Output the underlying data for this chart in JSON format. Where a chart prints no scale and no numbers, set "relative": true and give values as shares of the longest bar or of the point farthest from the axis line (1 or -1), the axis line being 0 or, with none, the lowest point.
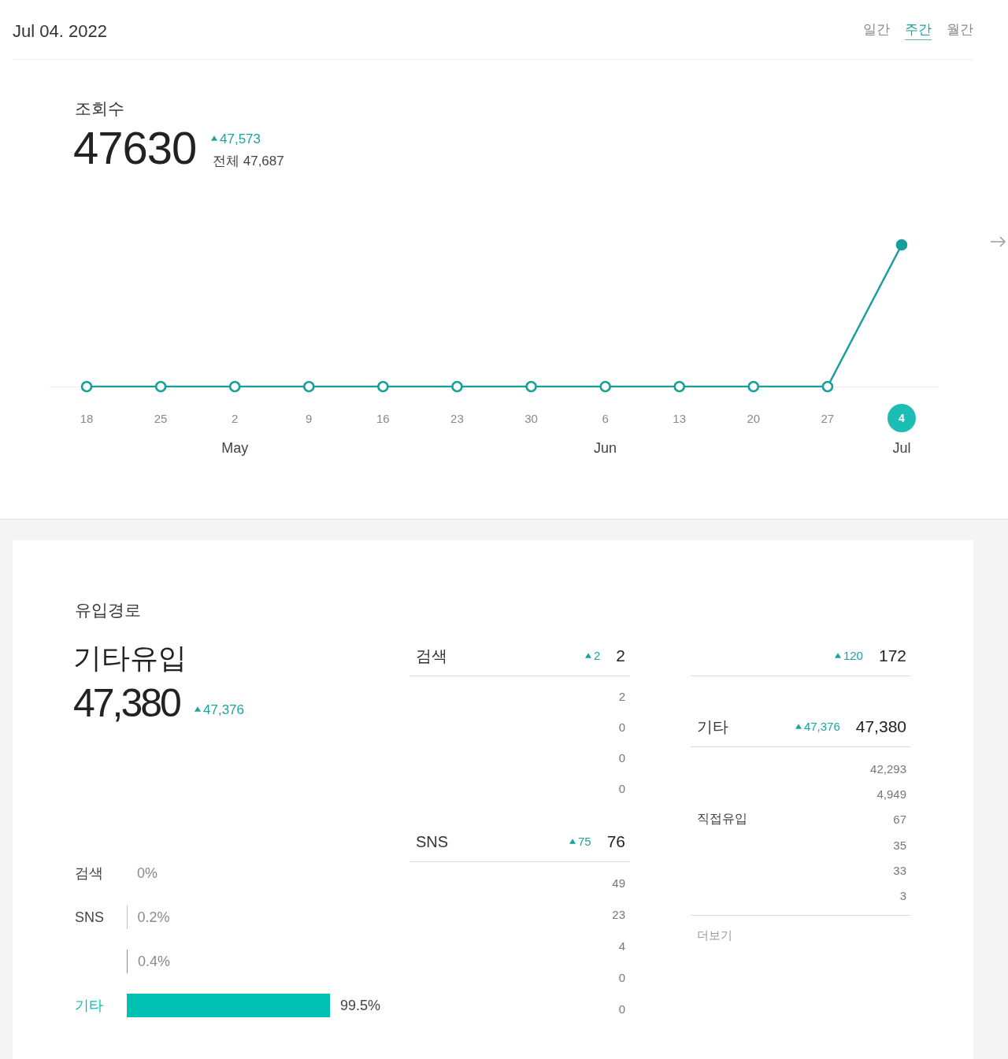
{
  "chart_data": [
    {
      "type": "line",
      "title": "조회수",
      "annotations": [
        "Jul 04. 2022",
        "일간",
        "주간",
        "월간",
        "47630",
        "47,573",
        "전체 47,687",
        "May",
        "Jun",
        "Jul"
      ],
      "categories": [
        "18",
        "25",
        "2",
        "9",
        "16",
        "23",
        "30",
        "6",
        "13",
        "20",
        "27",
        "4"
      ],
      "values": [
        0,
        0,
        0,
        0,
        0,
        0,
        0,
        0,
        0,
        0,
        0,
        1
      ],
      "relative": true,
      "color": "#179f9a",
      "marker": "circle"
    },
    {
      "type": "bar",
      "orientation": "horizontal",
      "title": "유입경로",
      "subtitle": "기타유입",
      "annotations": [
        "47,380",
        "47,376"
      ],
      "categories": [
        "검색",
        "SNS",
        null,
        "기타"
      ],
      "values": [
        0,
        0.2,
        0.4,
        99.5
      ],
      "value_labels": [
        "0%",
        "0.2%",
        "0.4%",
        "99.5%"
      ],
      "colors": [
        "#8c8c8c",
        "#8c8c8c",
        "#8c8c8c",
        "#00bfb3"
      ]
    },
    {
      "type": "other",
      "title": "검색",
      "annotations": [
        "2",
        "2"
      ],
      "categories": [
        null,
        null,
        null,
        null
      ],
      "values": [
        2,
        0,
        0,
        0
      ],
      "data_labels": true
    },
    {
      "type": "other",
      "title": "SNS",
      "annotations": [
        "75",
        "76"
      ],
      "categories": [
        null,
        null,
        null,
        null,
        null
      ],
      "values": [
        49,
        23,
        4,
        0,
        0
      ],
      "data_labels": true
    },
    {
      "type": "other",
      "annotations": [
        "120",
        "172"
      ]
    },
    {
      "type": "other",
      "title": "기타",
      "annotations": [
        "47,376",
        "47,380",
        "더보기"
      ],
      "categories": [
        null,
        null,
        "직접유입",
        null,
        null,
        null
      ],
      "values": [
        42293,
        4949,
        67,
        35,
        33,
        3
      ],
      "value_labels": [
        "42,293",
        "4,949",
        "67",
        "35",
        "33",
        "3"
      ]
    }
  ]
}
